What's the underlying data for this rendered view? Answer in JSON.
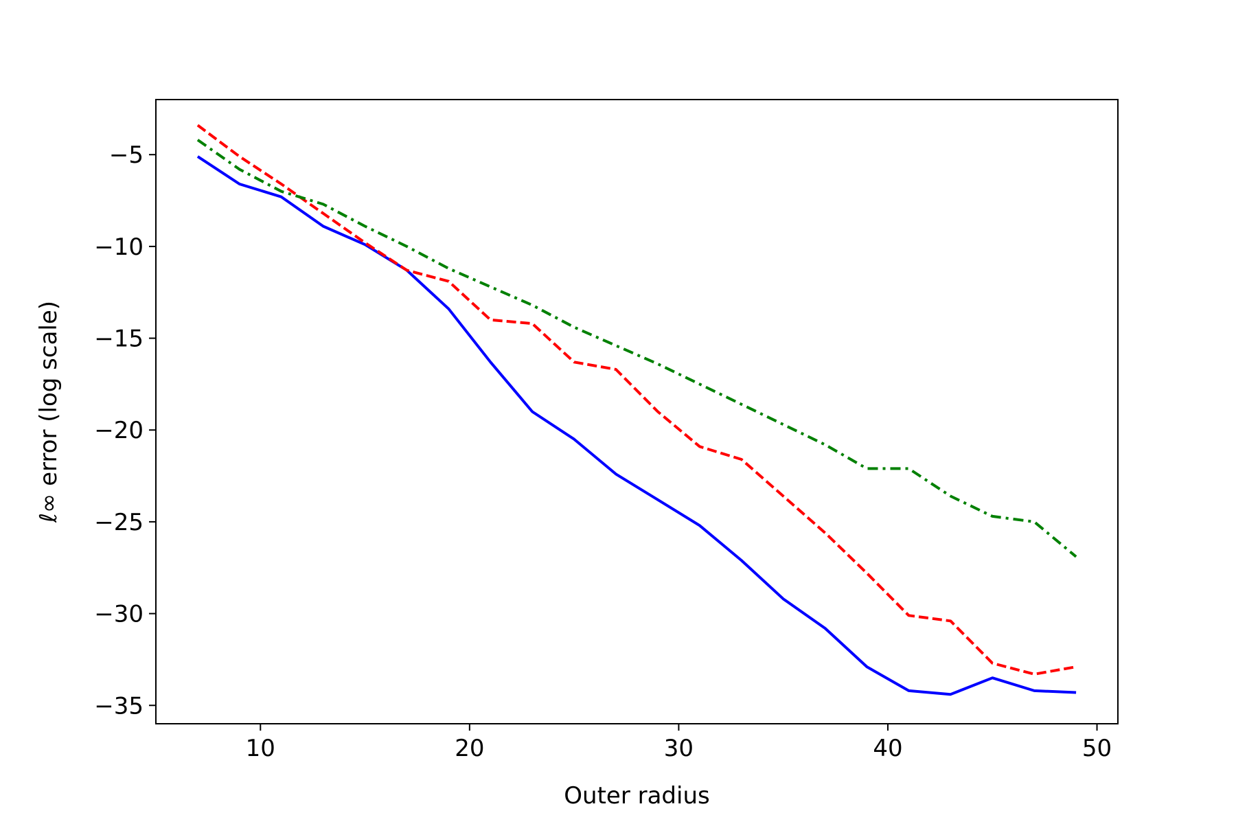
{
  "chart_data": {
    "type": "line",
    "title": "",
    "xlabel": "Outer radius",
    "ylabel": "ℓ∞ error (log scale)",
    "xlim": [
      5,
      51
    ],
    "ylim": [
      -36,
      -2
    ],
    "grid": false,
    "x_ticks": [
      10,
      20,
      30,
      40,
      50
    ],
    "x_tick_labels": [
      "10",
      "20",
      "30",
      "40",
      "50"
    ],
    "y_ticks": [
      -5,
      -10,
      -15,
      -20,
      -25,
      -30,
      -35
    ],
    "y_tick_labels": [
      "−5",
      "−10",
      "−15",
      "−20",
      "−25",
      "−30",
      "−35"
    ],
    "x": [
      7,
      9,
      11,
      13,
      15,
      17,
      19,
      21,
      23,
      25,
      27,
      29,
      31,
      33,
      35,
      37,
      39,
      41,
      43,
      45,
      47,
      49
    ],
    "series": [
      {
        "color": "#0000ff",
        "style": "solid",
        "values": [
          -5.1,
          -6.6,
          -7.3,
          -8.9,
          -9.9,
          -11.3,
          -13.4,
          -16.3,
          -19.0,
          -20.5,
          -22.4,
          -23.8,
          -25.2,
          -27.1,
          -29.2,
          -30.8,
          -32.9,
          -34.2,
          -34.4,
          -33.5,
          -34.2,
          -34.3
        ]
      },
      {
        "color": "#ff0000",
        "style": "dashed",
        "values": [
          -3.4,
          -5.1,
          -6.6,
          -8.2,
          -9.8,
          -11.3,
          -11.9,
          -14.0,
          -14.2,
          -16.3,
          -16.7,
          -19.0,
          -20.9,
          -21.6,
          -23.6,
          -25.6,
          -27.8,
          -30.1,
          -30.4,
          -32.7,
          -33.3,
          -32.9
        ]
      },
      {
        "color": "#008000",
        "style": "dashdot",
        "values": [
          -4.2,
          -5.8,
          -7.0,
          -7.7,
          -8.9,
          -10.0,
          -11.2,
          -12.2,
          -13.2,
          -14.4,
          -15.4,
          -16.4,
          -17.5,
          -18.6,
          -19.7,
          -20.8,
          -22.1,
          -22.1,
          -23.6,
          -24.7,
          -25.0,
          -26.9
        ]
      }
    ]
  }
}
